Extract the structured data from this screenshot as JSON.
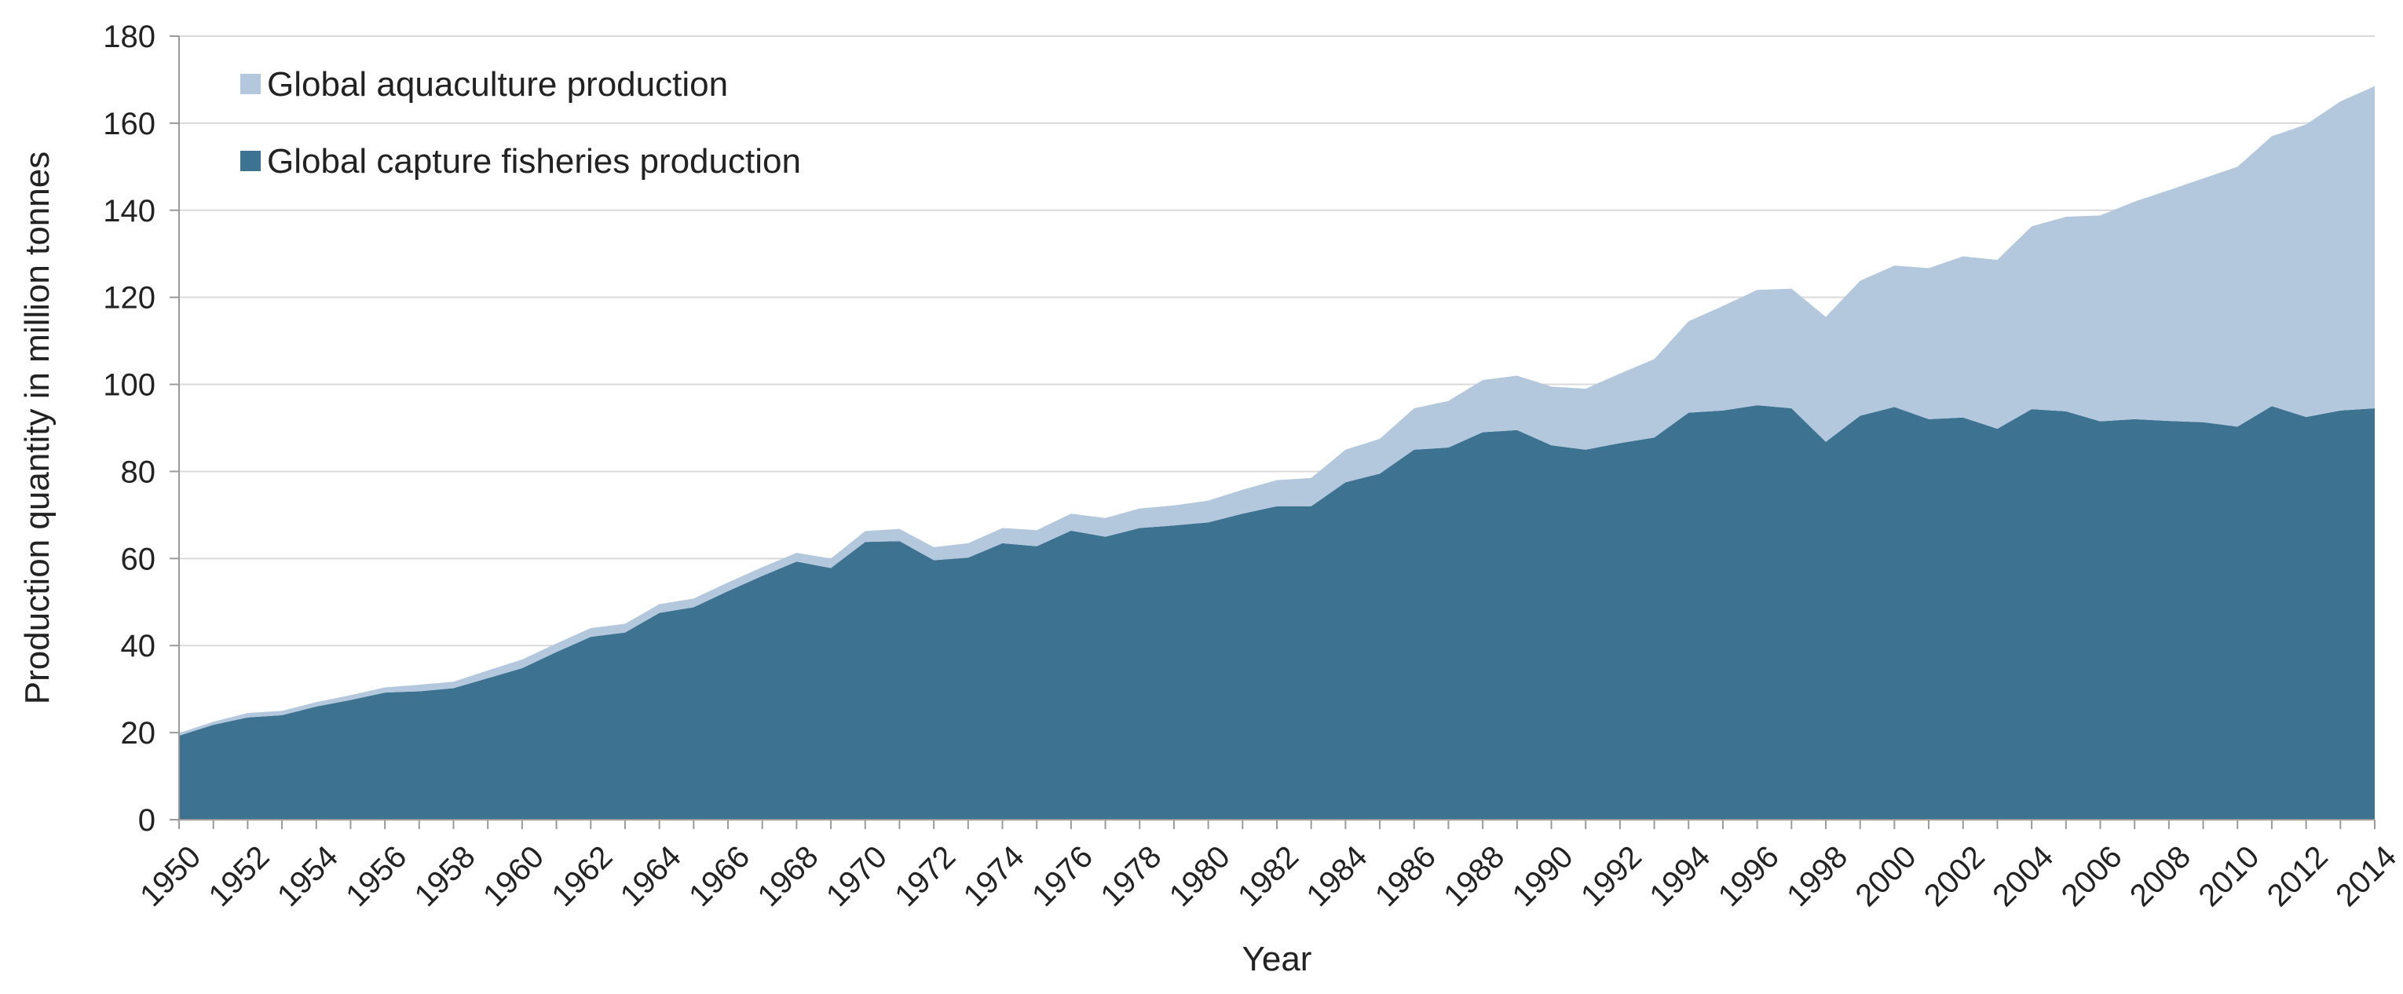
{
  "chart_data": {
    "type": "area",
    "stacked": true,
    "title": "",
    "xlabel": "Year",
    "ylabel": "Production quantity in million tonnes",
    "ylim": [
      0,
      180
    ],
    "yticks": [
      0,
      20,
      40,
      60,
      80,
      100,
      120,
      140,
      160,
      180
    ],
    "xlim": [
      1950,
      2014
    ],
    "xticks": [
      1950,
      1952,
      1954,
      1956,
      1958,
      1960,
      1962,
      1964,
      1966,
      1968,
      1970,
      1972,
      1974,
      1976,
      1978,
      1980,
      1982,
      1984,
      1986,
      1988,
      1990,
      1992,
      1994,
      1996,
      1998,
      2000,
      2002,
      2004,
      2006,
      2008,
      2010,
      2012,
      2014
    ],
    "grid": true,
    "legend_position": "top-left",
    "x": [
      1950,
      1951,
      1952,
      1953,
      1954,
      1955,
      1956,
      1957,
      1958,
      1959,
      1960,
      1961,
      1962,
      1963,
      1964,
      1965,
      1966,
      1967,
      1968,
      1969,
      1970,
      1971,
      1972,
      1973,
      1974,
      1975,
      1976,
      1977,
      1978,
      1979,
      1980,
      1981,
      1982,
      1983,
      1984,
      1985,
      1986,
      1987,
      1988,
      1989,
      1990,
      1991,
      1992,
      1993,
      1994,
      1995,
      1996,
      1997,
      1998,
      1999,
      2000,
      2001,
      2002,
      2003,
      2004,
      2005,
      2006,
      2007,
      2008,
      2009,
      2010,
      2011,
      2012,
      2013,
      2014
    ],
    "series": [
      {
        "name": "Global capture fisheries production",
        "color": "#3d7391",
        "values": [
          19.3,
          21.8,
          23.5,
          24.0,
          26.0,
          27.5,
          29.2,
          29.5,
          30.2,
          32.5,
          34.8,
          38.5,
          42.0,
          43.0,
          47.5,
          48.8,
          52.5,
          56.0,
          59.3,
          57.8,
          63.8,
          64.0,
          59.6,
          60.2,
          63.5,
          62.8,
          66.4,
          65.0,
          67.0,
          67.6,
          68.3,
          70.3,
          72.0,
          72.0,
          77.5,
          79.5,
          85.0,
          85.5,
          89.0,
          89.5,
          86.0,
          85.0,
          86.5,
          87.8,
          93.5,
          94.0,
          95.2,
          94.5,
          86.8,
          92.8,
          94.8,
          92.0,
          92.4,
          89.8,
          94.3,
          93.8,
          91.5,
          92.0,
          91.6,
          91.3,
          90.3,
          95.0,
          92.5,
          94.0,
          94.5
        ]
      },
      {
        "name": "Global aquaculture production",
        "color": "#b4c8dd",
        "values": [
          0.6,
          0.7,
          1.0,
          1.0,
          1.0,
          1.1,
          1.2,
          1.5,
          1.5,
          1.8,
          2.0,
          2.0,
          2.0,
          2.0,
          2.0,
          2.0,
          2.0,
          2.0,
          2.0,
          2.2,
          2.5,
          2.8,
          3.0,
          3.3,
          3.5,
          3.7,
          3.9,
          4.3,
          4.5,
          4.6,
          5.0,
          5.5,
          6.0,
          6.5,
          7.5,
          8.0,
          9.5,
          10.7,
          12.0,
          12.5,
          13.5,
          14.0,
          16.0,
          18.0,
          21.0,
          24.0,
          26.5,
          27.5,
          28.7,
          31.0,
          32.5,
          34.7,
          37.0,
          38.8,
          42.0,
          44.7,
          47.3,
          50.0,
          53.0,
          56.0,
          59.7,
          62.0,
          67.2,
          71.0,
          74.0
        ]
      }
    ]
  }
}
